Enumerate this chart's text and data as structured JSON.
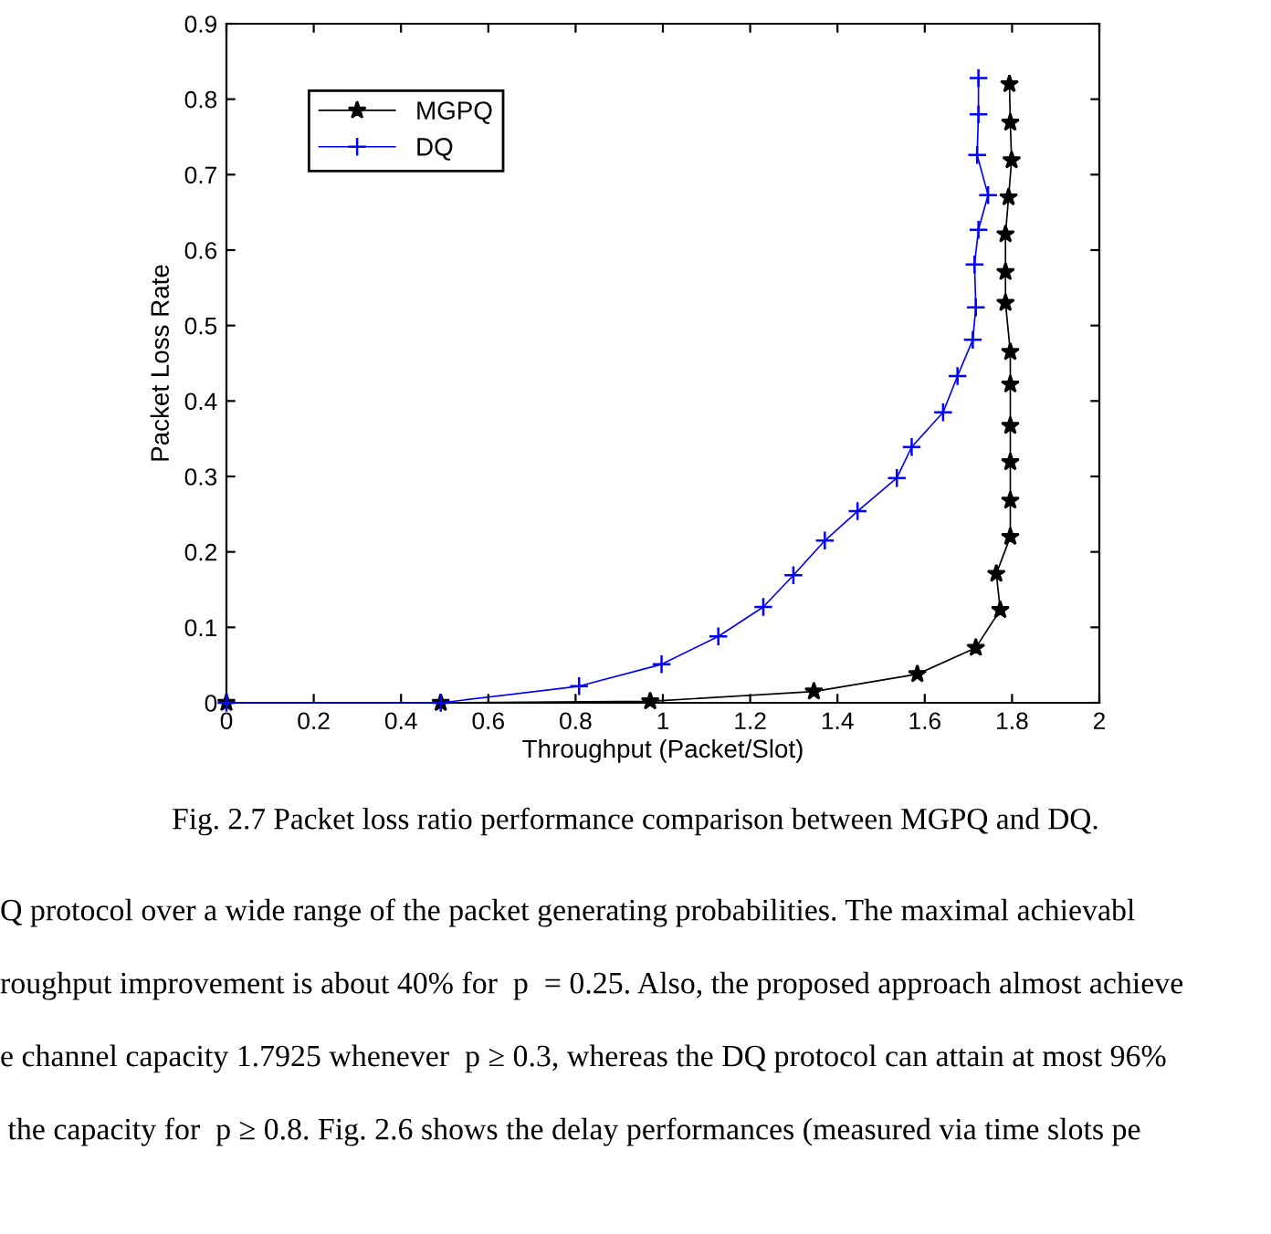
{
  "chart_data": {
    "type": "line",
    "xlabel": "Throughput (Packet/Slot)",
    "ylabel": "Packet Loss Rate",
    "xlim": [
      0,
      2
    ],
    "ylim": [
      0,
      0.9
    ],
    "xticks": [
      0,
      0.2,
      0.4,
      0.6,
      0.8,
      1,
      1.2,
      1.4,
      1.6,
      1.8,
      2
    ],
    "yticks": [
      0,
      0.1,
      0.2,
      0.3,
      0.4,
      0.5,
      0.6,
      0.7,
      0.8,
      0.9
    ],
    "grid": false,
    "legend": "top left",
    "line_style": "solid",
    "series": [
      {
        "name": "MGPQ",
        "color": "#000000",
        "marker": "star",
        "x": [
          0,
          0.491,
          0.971,
          1.346,
          1.583,
          1.717,
          1.773,
          1.764,
          1.796,
          1.796,
          1.796,
          1.796,
          1.796,
          1.796,
          1.785,
          1.785,
          1.785,
          1.792,
          1.799,
          1.796,
          1.794
        ],
        "values": [
          0,
          0,
          0.002,
          0.015,
          0.038,
          0.073,
          0.123,
          0.171,
          0.22,
          0.268,
          0.319,
          0.367,
          0.422,
          0.465,
          0.53,
          0.571,
          0.621,
          0.67,
          0.719,
          0.769,
          0.82
        ]
      },
      {
        "name": "DQ",
        "color": "#0000ff",
        "marker": "cross",
        "x": [
          0,
          0.491,
          0.808,
          0.997,
          1.127,
          1.23,
          1.299,
          1.371,
          1.446,
          1.536,
          1.57,
          1.642,
          1.675,
          1.71,
          1.717,
          1.714,
          1.723,
          1.745,
          1.72,
          1.723,
          1.723
        ],
        "values": [
          0,
          0,
          0.022,
          0.051,
          0.088,
          0.127,
          0.169,
          0.215,
          0.254,
          0.298,
          0.339,
          0.385,
          0.433,
          0.481,
          0.524,
          0.581,
          0.627,
          0.673,
          0.726,
          0.78,
          0.828
        ]
      }
    ],
    "annotations": [
      "Fig. 2.7 Packet loss ratio performance comparison between MGPQ and DQ.",
      "Q protocol over a wide range of the packet generating probabilities. The maximal achievabl",
      "roughput improvement is about 40% for  p  = 0.25. Also, the proposed approach almost achieve",
      "e channel capacity 1.7925 whenever  p ≥ 0.3, whereas the DQ protocol can attain at most 96%",
      " the capacity for  p ≥ 0.8. Fig. 2.6 shows the delay performances (measured via time slots pe"
    ]
  }
}
